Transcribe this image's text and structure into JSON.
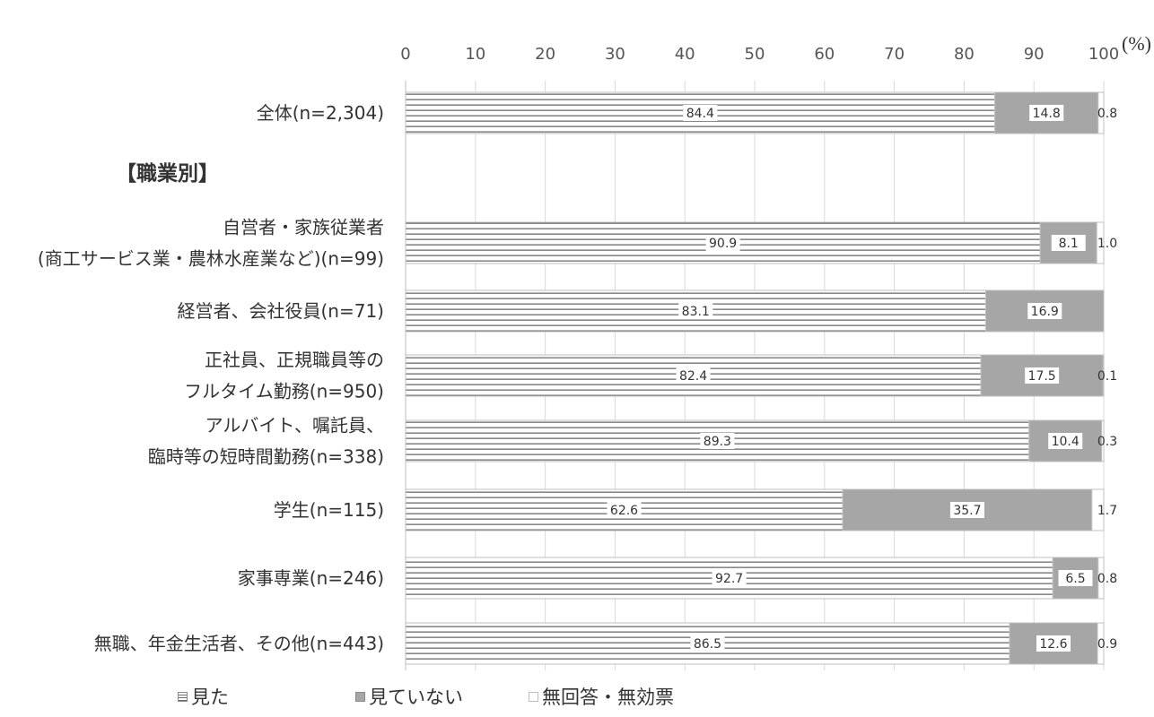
{
  "chart_data": {
    "type": "bar",
    "orientation": "horizontal",
    "stacked": true,
    "unit_label": "(%)",
    "xlim": [
      0,
      100
    ],
    "ticks": [
      0,
      10,
      20,
      30,
      40,
      50,
      60,
      70,
      80,
      90,
      100
    ],
    "grid": true,
    "section_header": "【職業別】",
    "categories": [
      {
        "lines": [
          "全体(n=2,304)"
        ]
      },
      {
        "lines": [
          "自営者・家族従業者",
          "(商工サービス業・農林水産業など)(n=99)"
        ]
      },
      {
        "lines": [
          "経営者、会社役員(n=71)"
        ]
      },
      {
        "lines": [
          "正社員、正規職員等の",
          "フルタイム勤務(n=950)"
        ]
      },
      {
        "lines": [
          "アルバイト、嘱託員、",
          "臨時等の短時間勤務(n=338)"
        ]
      },
      {
        "lines": [
          "学生(n=115)"
        ]
      },
      {
        "lines": [
          "家事専業(n=246)"
        ]
      },
      {
        "lines": [
          "無職、年金生活者、その他(n=443)"
        ]
      }
    ],
    "series": [
      {
        "name": "見た",
        "color": "#ffffff",
        "pattern": "horizontal-lines",
        "values": [
          84.4,
          90.9,
          83.1,
          82.4,
          89.3,
          62.6,
          92.7,
          86.5
        ]
      },
      {
        "name": "見ていない",
        "color": "#a6a6a6",
        "values": [
          14.8,
          8.1,
          16.9,
          17.5,
          10.4,
          35.7,
          6.5,
          12.6
        ]
      },
      {
        "name": "無回答・無効票",
        "color": "#ffffff",
        "values": [
          0.8,
          1.0,
          null,
          0.1,
          0.3,
          1.7,
          0.8,
          0.9
        ]
      }
    ],
    "legend_position": "bottom"
  },
  "legend": {
    "items": [
      {
        "label": "見た"
      },
      {
        "label": "見ていない"
      },
      {
        "label": "無回答・無効票"
      }
    ]
  }
}
